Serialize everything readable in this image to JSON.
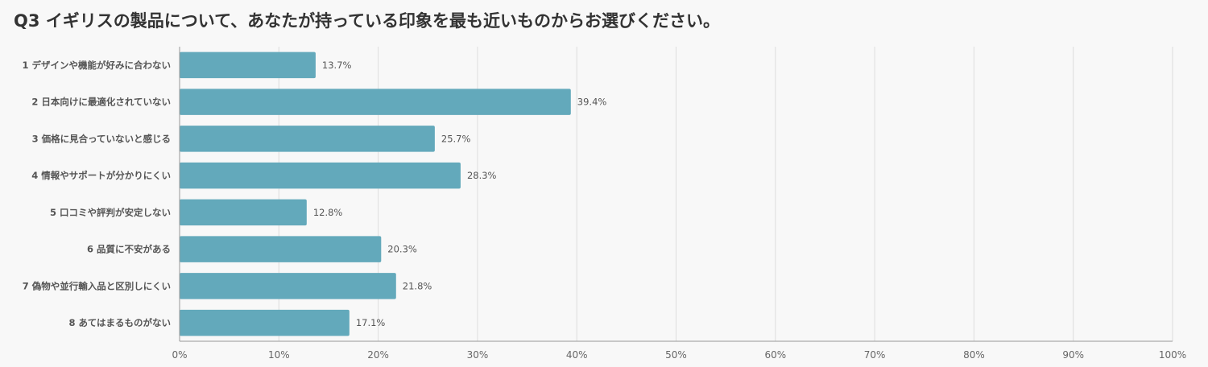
{
  "title": "Q3 イギリスの製品について、あなたが持っている印象を最も近いものからお選びください。",
  "colors": {
    "bar": "#63a9bb",
    "grid": "#dddddd",
    "axis": "#999999",
    "background": "#f8f8f8"
  },
  "chart_data": {
    "type": "bar",
    "orientation": "horizontal",
    "title": "Q3 イギリスの製品について、あなたが持っている印象を最も近いものからお選びください。",
    "categories": [
      "1 デザインや機能が好みに合わない",
      "2 日本向けに最適化されていない",
      "3 価格に見合っていないと感じる",
      "4 情報やサポートが分かりにくい",
      "5 口コミや評判が安定しない",
      "6 品質に不安がある",
      "7 偽物や並行輸入品と区別しにくい",
      "8 あてはまるものがない"
    ],
    "values": [
      13.7,
      39.4,
      25.7,
      28.3,
      12.8,
      20.3,
      21.8,
      17.1
    ],
    "value_labels": [
      "13.7%",
      "39.4%",
      "25.7%",
      "28.3%",
      "12.8%",
      "20.3%",
      "21.8%",
      "17.1%"
    ],
    "xlim": [
      0,
      100
    ],
    "ticks": [
      0,
      10,
      20,
      30,
      40,
      50,
      60,
      70,
      80,
      90,
      100
    ],
    "tick_labels": [
      "0%",
      "10%",
      "20%",
      "30%",
      "40%",
      "50%",
      "60%",
      "70%",
      "80%",
      "90%",
      "100%"
    ],
    "grid": true,
    "legend": "none"
  }
}
